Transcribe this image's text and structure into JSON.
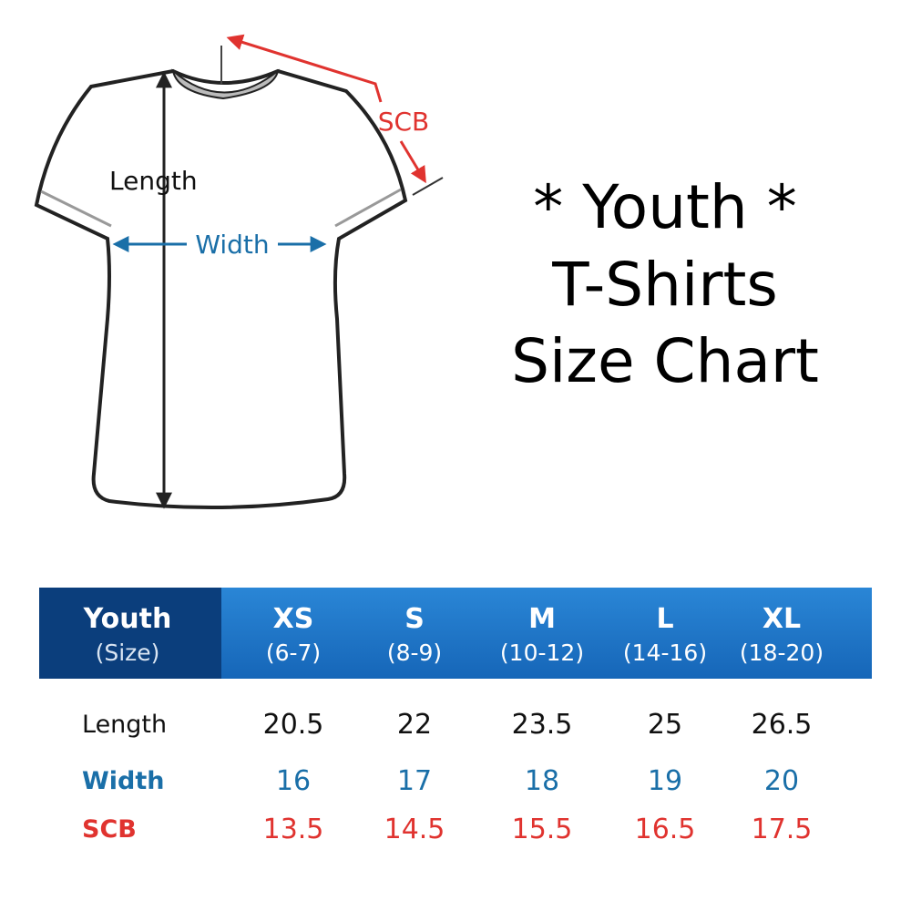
{
  "diagram": {
    "length": "Length",
    "width": "Width",
    "scb": "SCB"
  },
  "title": [
    "* Youth *",
    "T-Shirts",
    "Size Chart"
  ],
  "table": {
    "header": [
      {
        "size": "Youth",
        "range": "(Size)"
      },
      {
        "size": "XS",
        "range": "(6-7)"
      },
      {
        "size": "S",
        "range": "(8-9)"
      },
      {
        "size": "M",
        "range": "(10-12)"
      },
      {
        "size": "L",
        "range": "(14-16)"
      },
      {
        "size": "XL",
        "range": "(18-20)"
      }
    ],
    "rows": [
      {
        "label": "Length",
        "values": [
          20.5,
          22,
          23.5,
          25,
          26.5
        ]
      },
      {
        "label": "Width",
        "values": [
          16,
          17,
          18,
          19,
          20
        ]
      },
      {
        "label": "SCB",
        "values": [
          13.5,
          14.5,
          15.5,
          16.5,
          17.5
        ]
      }
    ]
  }
}
